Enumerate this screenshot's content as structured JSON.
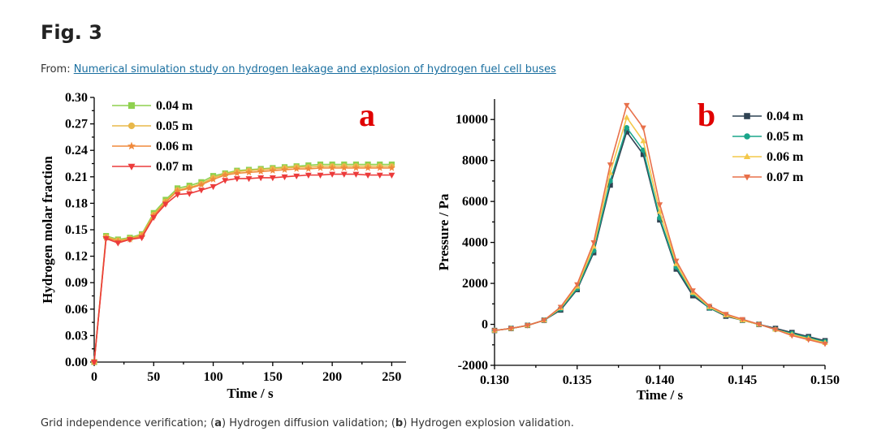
{
  "header": {
    "fig_title": "Fig. 3",
    "from_prefix": "From: ",
    "from_link": "Numerical simulation study on hydrogen leakage and explosion of hydrogen fuel cell buses"
  },
  "caption": {
    "intro": "Grid independence verification; (",
    "a": "a",
    "mid": ") Hydrogen diffusion validation; (",
    "b": "b",
    "end": ") Hydrogen explosion validation."
  },
  "chart_data": [
    {
      "type": "line",
      "panel_label": "a",
      "xlabel": "Time / s",
      "ylabel": "Hydrogen molar fraction",
      "xlim": [
        0,
        262
      ],
      "ylim": [
        0,
        0.3
      ],
      "xticks": [
        0,
        50,
        100,
        150,
        200,
        250
      ],
      "yticks": [
        0.0,
        0.03,
        0.06,
        0.09,
        0.12,
        0.15,
        0.18,
        0.21,
        0.24,
        0.27,
        0.3
      ],
      "legend_position": "top-left",
      "x": [
        0,
        10,
        20,
        30,
        40,
        50,
        60,
        70,
        80,
        90,
        100,
        110,
        120,
        130,
        140,
        150,
        160,
        170,
        180,
        190,
        200,
        210,
        220,
        230,
        240,
        250
      ],
      "series": [
        {
          "name": "0.04 m",
          "color": "#8fd14f",
          "marker": "square",
          "values": [
            0.0,
            0.143,
            0.139,
            0.141,
            0.145,
            0.169,
            0.184,
            0.197,
            0.2,
            0.204,
            0.211,
            0.214,
            0.217,
            0.218,
            0.219,
            0.22,
            0.221,
            0.222,
            0.223,
            0.224,
            0.224,
            0.224,
            0.224,
            0.224,
            0.224,
            0.224
          ]
        },
        {
          "name": "0.05 m",
          "color": "#e8b84a",
          "marker": "circle",
          "values": [
            0.0,
            0.142,
            0.138,
            0.14,
            0.144,
            0.167,
            0.182,
            0.195,
            0.198,
            0.202,
            0.209,
            0.213,
            0.216,
            0.217,
            0.218,
            0.219,
            0.22,
            0.221,
            0.221,
            0.222,
            0.222,
            0.222,
            0.222,
            0.222,
            0.222,
            0.222
          ]
        },
        {
          "name": "0.06 m",
          "color": "#f08a3c",
          "marker": "star",
          "values": [
            0.0,
            0.141,
            0.137,
            0.139,
            0.143,
            0.166,
            0.181,
            0.194,
            0.197,
            0.201,
            0.207,
            0.212,
            0.214,
            0.215,
            0.216,
            0.217,
            0.218,
            0.219,
            0.219,
            0.22,
            0.22,
            0.22,
            0.22,
            0.22,
            0.22,
            0.22
          ]
        },
        {
          "name": "0.07 m",
          "color": "#ec3b3b",
          "marker": "triangle-down",
          "values": [
            0.0,
            0.14,
            0.135,
            0.139,
            0.141,
            0.164,
            0.179,
            0.19,
            0.191,
            0.195,
            0.199,
            0.206,
            0.208,
            0.208,
            0.209,
            0.209,
            0.21,
            0.211,
            0.212,
            0.212,
            0.213,
            0.213,
            0.213,
            0.212,
            0.212,
            0.212
          ]
        }
      ]
    },
    {
      "type": "line",
      "panel_label": "b",
      "xlabel": "Time / s",
      "ylabel": "Pressure / Pa",
      "xlim": [
        0.13,
        0.15
      ],
      "ylim": [
        -2000,
        11000
      ],
      "xticks": [
        0.13,
        0.135,
        0.14,
        0.145,
        0.15
      ],
      "xtick_labels": [
        "0.130",
        "0.135",
        "0.140",
        "0.145",
        "0.150"
      ],
      "yticks": [
        -2000,
        0,
        2000,
        4000,
        6000,
        8000,
        10000
      ],
      "legend_position": "top-right",
      "x": [
        0.13,
        0.131,
        0.132,
        0.133,
        0.134,
        0.135,
        0.136,
        0.137,
        0.138,
        0.139,
        0.14,
        0.141,
        0.142,
        0.143,
        0.144,
        0.145,
        0.146,
        0.147,
        0.148,
        0.149,
        0.15
      ],
      "series": [
        {
          "name": "0.04 m",
          "color": "#2f4353",
          "marker": "square",
          "values": [
            -300,
            -200,
            -50,
            200,
            700,
            1700,
            3500,
            6800,
            9400,
            8300,
            5100,
            2700,
            1400,
            800,
            400,
            200,
            0,
            -200,
            -400,
            -600,
            -800
          ]
        },
        {
          "name": "0.05 m",
          "color": "#1aa58a",
          "marker": "circle",
          "values": [
            -300,
            -200,
            -50,
            200,
            750,
            1750,
            3600,
            7000,
            9600,
            8500,
            5200,
            2800,
            1500,
            800,
            450,
            200,
            0,
            -250,
            -450,
            -650,
            -850
          ]
        },
        {
          "name": "0.06 m",
          "color": "#f4c84a",
          "marker": "triangle-up",
          "values": [
            -300,
            -200,
            -50,
            200,
            800,
            1850,
            3800,
            7400,
            10100,
            8950,
            5500,
            2950,
            1550,
            850,
            450,
            200,
            0,
            -250,
            -500,
            -700,
            -900
          ]
        },
        {
          "name": "0.07 m",
          "color": "#e8704a",
          "marker": "triangle-down",
          "values": [
            -300,
            -200,
            -50,
            200,
            850,
            1950,
            4000,
            7800,
            10700,
            9600,
            5850,
            3100,
            1650,
            900,
            500,
            250,
            0,
            -250,
            -550,
            -750,
            -950
          ]
        }
      ]
    }
  ]
}
